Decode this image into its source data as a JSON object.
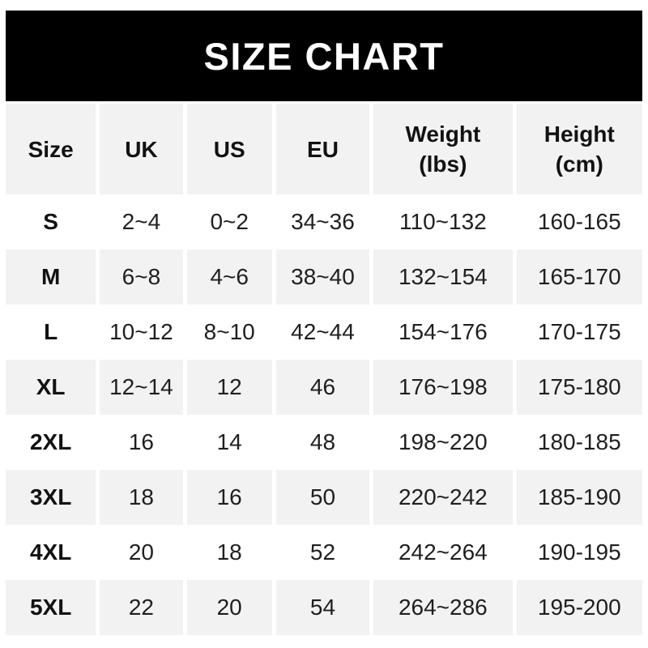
{
  "banner": {
    "title": "SIZE CHART"
  },
  "colors": {
    "banner_bg": "#000000",
    "banner_text": "#ffffff",
    "row_bg": "#ffffff",
    "row_alt_bg": "#f2f2f2",
    "text": "#1f1f1f",
    "bold_text": "#121212"
  },
  "table": {
    "headers": [
      {
        "label": "Size",
        "sub": ""
      },
      {
        "label": "UK",
        "sub": ""
      },
      {
        "label": "US",
        "sub": ""
      },
      {
        "label": "EU",
        "sub": ""
      },
      {
        "label": "Weight",
        "sub": "(lbs)"
      },
      {
        "label": "Height",
        "sub": "(cm)"
      }
    ]
  },
  "chart_data": {
    "type": "table",
    "title": "SIZE CHART",
    "columns": [
      "Size",
      "UK",
      "US",
      "EU",
      "Weight (lbs)",
      "Height (cm)"
    ],
    "rows": [
      [
        "S",
        "2~4",
        "0~2",
        "34~36",
        "110~132",
        "160-165"
      ],
      [
        "M",
        "6~8",
        "4~6",
        "38~40",
        "132~154",
        "165-170"
      ],
      [
        "L",
        "10~12",
        "8~10",
        "42~44",
        "154~176",
        "170-175"
      ],
      [
        "XL",
        "12~14",
        "12",
        "46",
        "176~198",
        "175-180"
      ],
      [
        "2XL",
        "16",
        "14",
        "48",
        "198~220",
        "180-185"
      ],
      [
        "3XL",
        "18",
        "16",
        "50",
        "220~242",
        "185-190"
      ],
      [
        "4XL",
        "20",
        "18",
        "52",
        "242~264",
        "190-195"
      ],
      [
        "5XL",
        "22",
        "20",
        "54",
        "264~286",
        "195-200"
      ]
    ]
  }
}
